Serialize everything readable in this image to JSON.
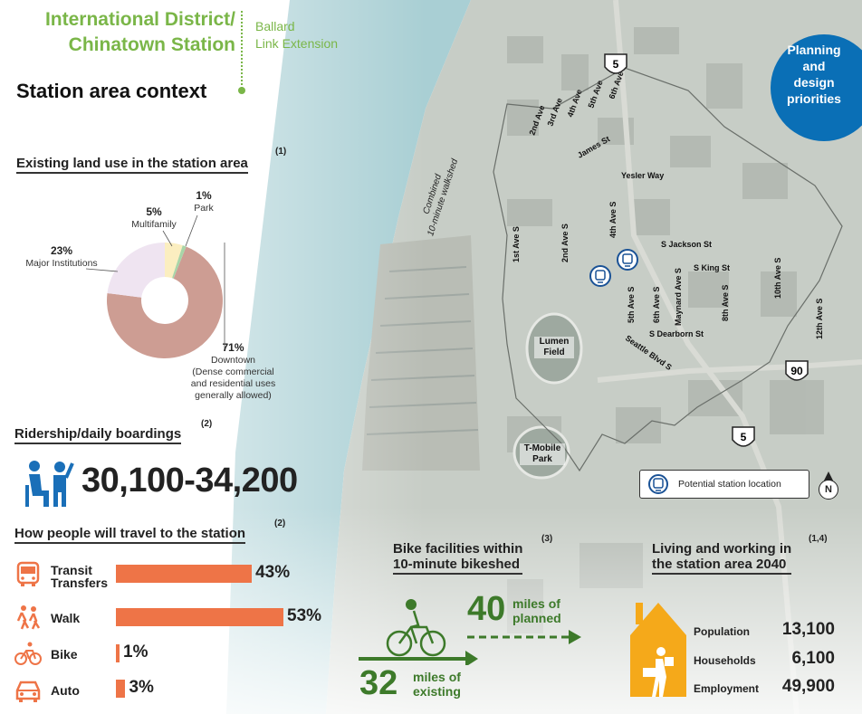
{
  "header": {
    "title_line1": "International District/",
    "title_line2": "Chinatown Station",
    "sub_line1": "Ballard",
    "sub_line2": "Link Extension",
    "section_title": "Station area context"
  },
  "badge": {
    "line1": "Planning",
    "line2": "and",
    "line3": "design",
    "line4": "priorities"
  },
  "land_use": {
    "heading": "Existing land use in the station area",
    "note": "(1)",
    "chart_data": {
      "type": "pie",
      "categories": [
        "Downtown",
        "Major Institutions",
        "Multifamily",
        "Park"
      ],
      "values": [
        71,
        23,
        5,
        1
      ],
      "colors": [
        "#cd9d93",
        "#efe4f1",
        "#fbeec0",
        "#a8d5a8"
      ]
    },
    "labels": {
      "multifamily_pct": "5%",
      "multifamily": "Multifamily",
      "park_pct": "1%",
      "park": "Park",
      "institutions_pct": "23%",
      "institutions": "Major Institutions",
      "downtown_pct": "71%",
      "downtown": "Downtown",
      "downtown_note1": "(Dense commercial",
      "downtown_note2": "and residential uses",
      "downtown_note3": "generally allowed)"
    }
  },
  "ridership": {
    "heading": "Ridership/daily boardings",
    "note": "(2)",
    "value": "30,100-34,200"
  },
  "travel": {
    "heading": "How people will travel to the station",
    "note": "(2)",
    "chart_data": {
      "type": "bar",
      "categories": [
        "Transit Transfers",
        "Walk",
        "Bike",
        "Auto"
      ],
      "values": [
        43,
        53,
        1,
        3
      ],
      "unit": "%"
    },
    "modes": [
      {
        "label1": "Transit",
        "label2": "Transfers",
        "pct": "43%",
        "icon": "bus-icon"
      },
      {
        "label1": "Walk",
        "pct": "53%",
        "icon": "walk-icon"
      },
      {
        "label1": "Bike",
        "pct": "1%",
        "icon": "bike-icon"
      },
      {
        "label1": "Auto",
        "pct": "3%",
        "icon": "car-icon"
      }
    ],
    "bar_color": "#ee7447"
  },
  "bike": {
    "heading_line1": "Bike facilities within",
    "heading_line2": "10-minute bikeshed",
    "note": "(3)",
    "existing_value": "32",
    "existing_line1": "miles of",
    "existing_line2": "existing",
    "planned_value": "40",
    "planned_line1": "miles of",
    "planned_line2": "planned",
    "color": "#3d7a2a"
  },
  "living": {
    "heading_line1": "Living and working in",
    "heading_line2": "the station area 2040",
    "note": "(1,4)",
    "stats": [
      {
        "label": "Population",
        "value": "13,100"
      },
      {
        "label": "Households",
        "value": "6,100"
      },
      {
        "label": "Employment",
        "value": "49,900"
      }
    ],
    "house_color": "#f5a91a"
  },
  "map": {
    "streets": [
      "2nd Ave",
      "3rd Ave",
      "4th Ave",
      "5th Ave",
      "6th Ave",
      "James St",
      "Yesler Way",
      "1st Ave S",
      "2nd Ave S",
      "4th Ave S",
      "S Jackson St",
      "S King St",
      "5th Ave S",
      "6th Ave S",
      "Maynard Ave S",
      "8th Ave S",
      "10th Ave S",
      "12th Ave S",
      "S Dearborn St",
      "Seattle Blvd S"
    ],
    "walkshed_label_line1": "Combined",
    "walkshed_label_line2": "10-minute walkshed",
    "places": [
      "Lumen Field",
      "T-Mobile Park"
    ],
    "lumen_line1": "Lumen",
    "lumen_line2": "Field",
    "tmobile_line1": "T-Mobile",
    "tmobile_line2": "Park",
    "highways": [
      "5",
      "90",
      "5"
    ],
    "legend_label": "Potential station location",
    "north": "N",
    "colors": {
      "water": "#a9cfd4",
      "land": "#c9cfc9"
    }
  }
}
